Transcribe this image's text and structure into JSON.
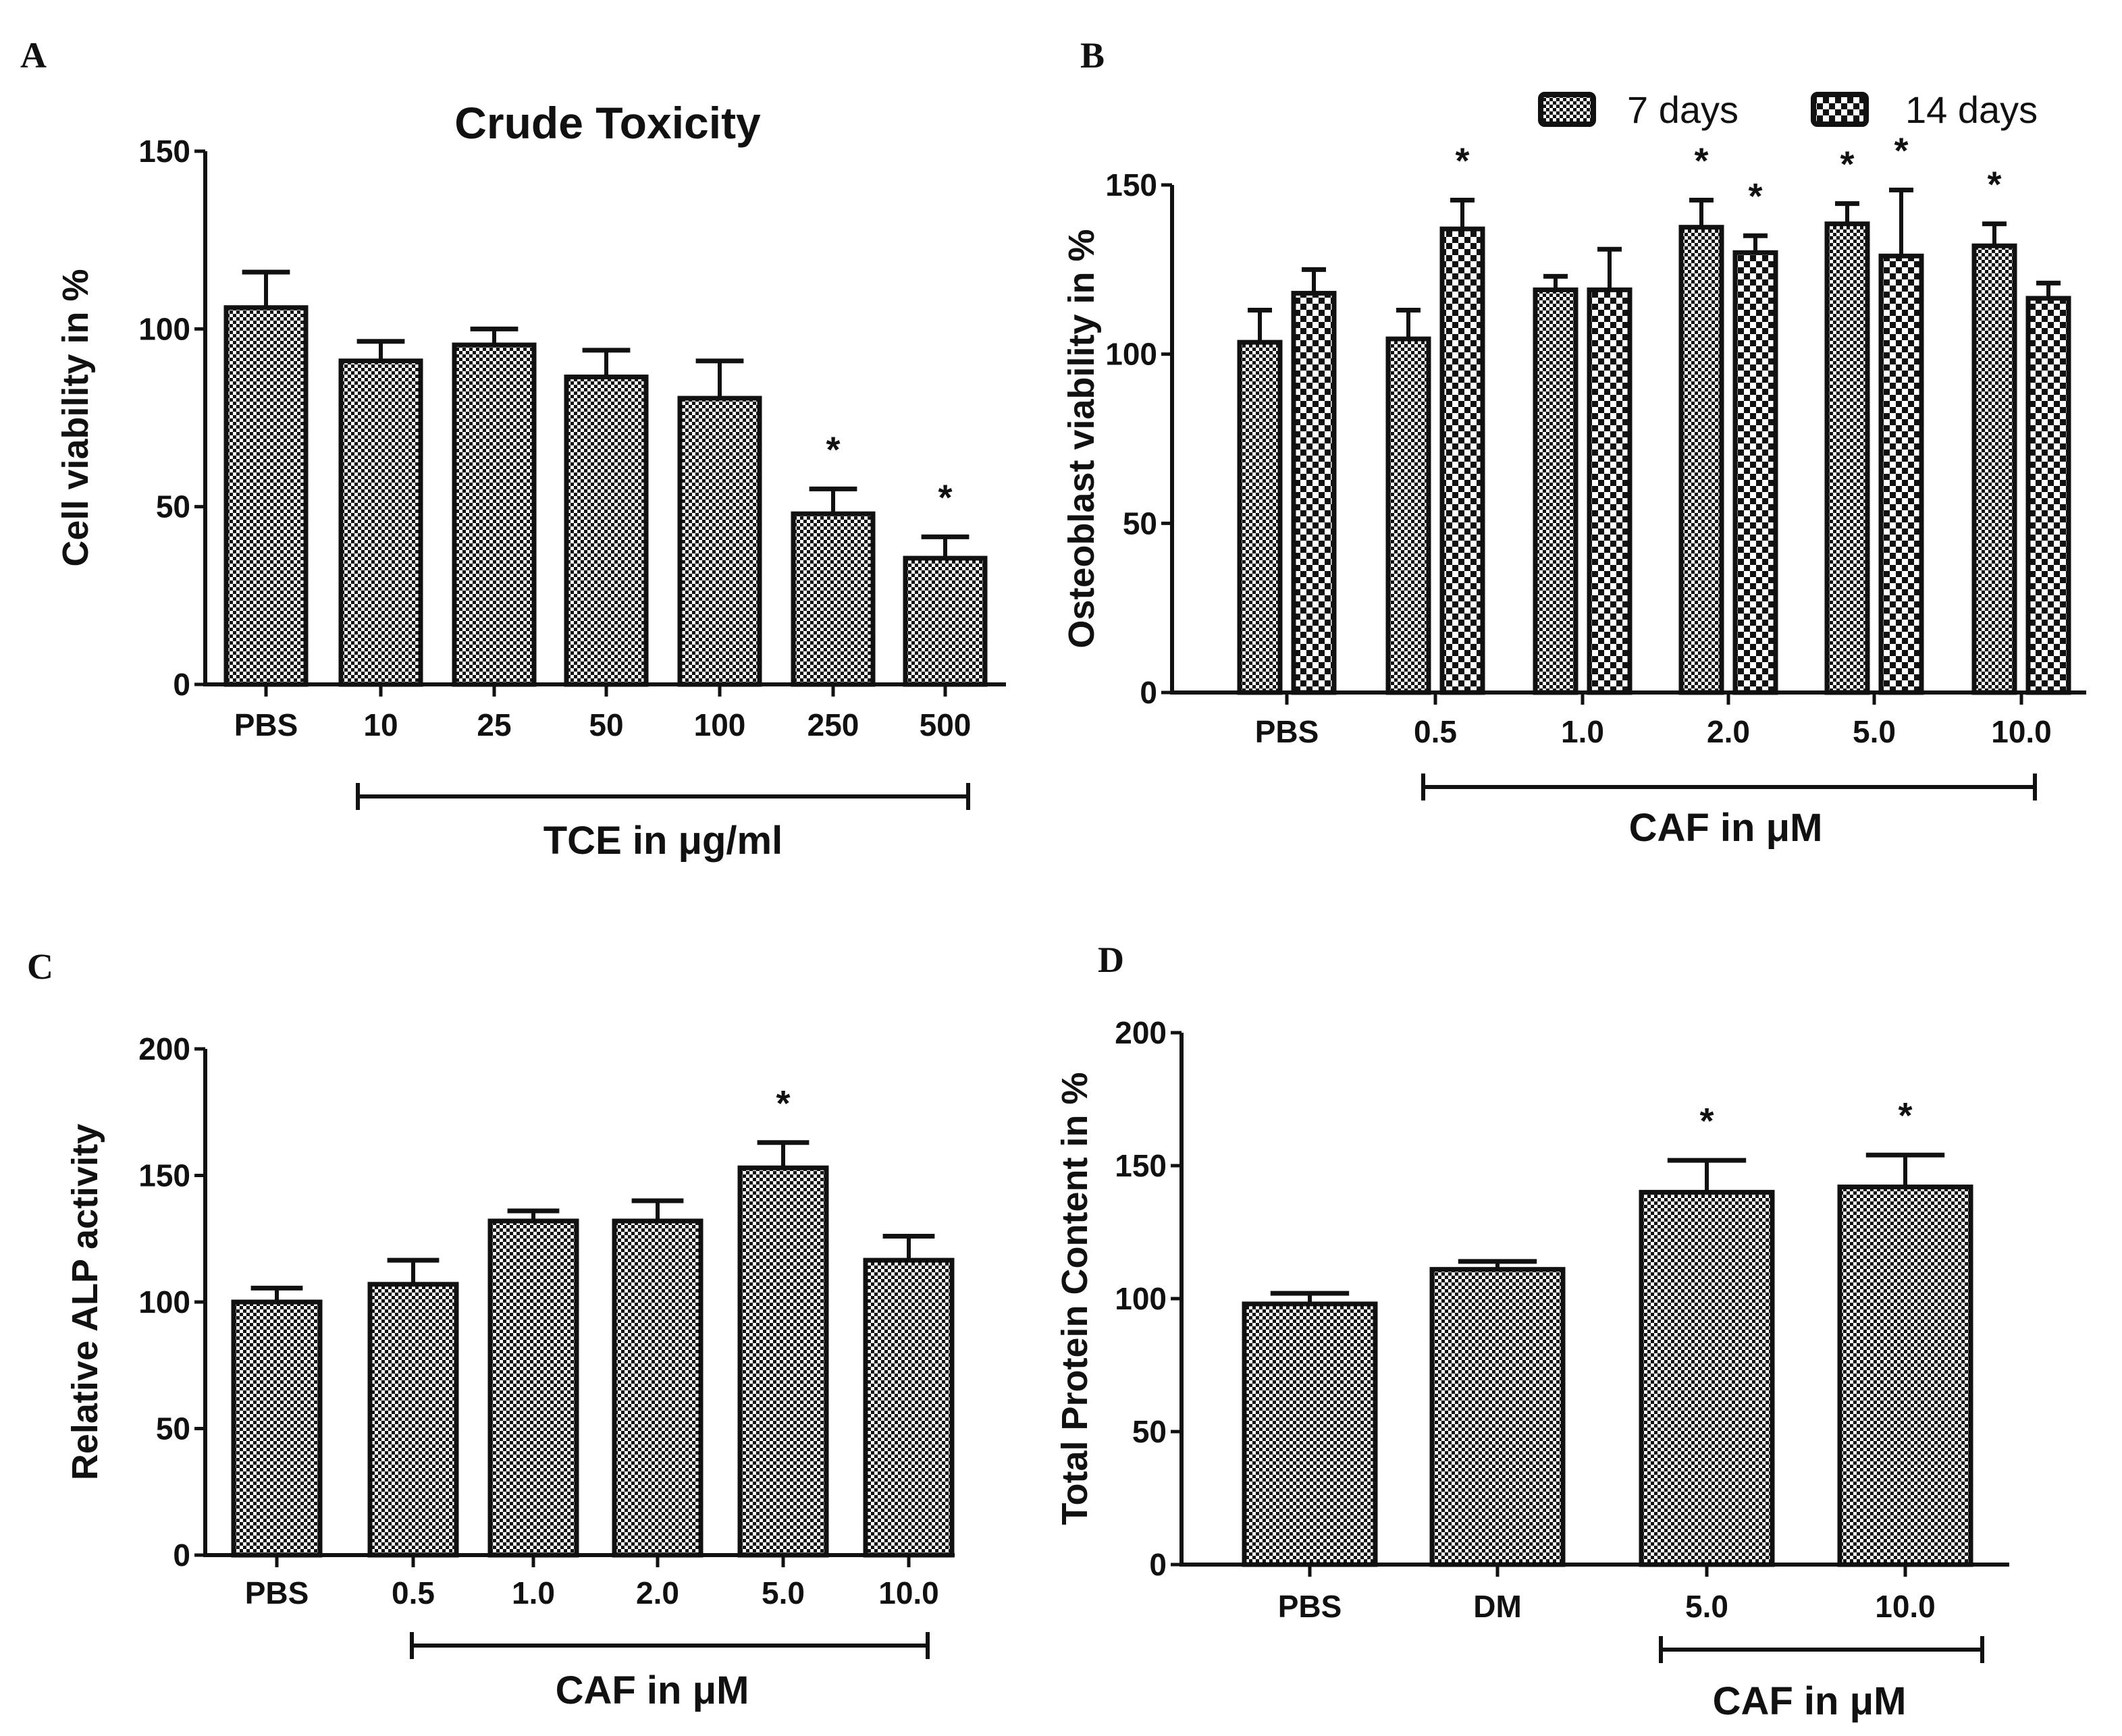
{
  "significance_marker": "*",
  "chart_data": [
    {
      "panel": "A",
      "type": "bar",
      "title": "Crude Toxicity",
      "ylabel": "Cell viability in %",
      "xlabel": "TCE in μg/ml",
      "ylim": [
        0,
        150
      ],
      "yticks": [
        0,
        50,
        100,
        150
      ],
      "categories": [
        "PBS",
        "10",
        "25",
        "50",
        "100",
        "250",
        "500"
      ],
      "values": [
        106,
        91,
        95.5,
        86.5,
        80.5,
        48,
        35.5
      ],
      "errors_upper": [
        116,
        96.5,
        100,
        94,
        91,
        55,
        41.5
      ],
      "significant": [
        false,
        false,
        false,
        false,
        false,
        true,
        true
      ],
      "bracket": [
        "10",
        "500"
      ]
    },
    {
      "panel": "B",
      "type": "bar",
      "title": "",
      "ylabel": "Osteoblast viability in %",
      "xlabel": "CAF in μM",
      "ylim": [
        0,
        150
      ],
      "yticks": [
        0,
        50,
        100,
        150
      ],
      "categories": [
        "PBS",
        "0.5",
        "1.0",
        "2.0",
        "5.0",
        "10.0"
      ],
      "legend_position": "top-right",
      "series": [
        {
          "name": "7 days",
          "values": [
            103.5,
            104.5,
            119,
            137.5,
            138.5,
            132
          ],
          "errors_upper": [
            113,
            113,
            123,
            145.5,
            144.5,
            138.5
          ],
          "significant": [
            false,
            false,
            false,
            true,
            true,
            true
          ]
        },
        {
          "name": "14 days",
          "values": [
            118,
            137,
            119,
            130,
            129,
            116.5
          ],
          "errors_upper": [
            125,
            145.5,
            131,
            135,
            148.5,
            121
          ],
          "significant": [
            false,
            true,
            false,
            true,
            true,
            false
          ]
        }
      ],
      "bracket": [
        "0.5",
        "10.0"
      ]
    },
    {
      "panel": "C",
      "type": "bar",
      "title": "",
      "ylabel": "Relative ALP activity",
      "xlabel": "CAF in μM",
      "ylim": [
        0,
        200
      ],
      "yticks": [
        0,
        50,
        100,
        150,
        200
      ],
      "categories": [
        "PBS",
        "0.5",
        "1.0",
        "2.0",
        "5.0",
        "10.0"
      ],
      "values": [
        100,
        107,
        132,
        132,
        153,
        116.5
      ],
      "errors_upper": [
        105.5,
        116.5,
        136,
        140,
        163,
        126
      ],
      "significant": [
        false,
        false,
        false,
        false,
        true,
        false
      ],
      "bracket": [
        "0.5",
        "10.0"
      ]
    },
    {
      "panel": "D",
      "type": "bar",
      "title": "",
      "ylabel": "Total Protein Content in %",
      "xlabel": "CAF in μM",
      "ylim": [
        0,
        200
      ],
      "yticks": [
        0,
        50,
        100,
        150,
        200
      ],
      "categories": [
        "PBS",
        "DM",
        "5.0",
        "10.0"
      ],
      "values": [
        98,
        111,
        140,
        142
      ],
      "errors_upper": [
        102,
        114,
        152,
        154
      ],
      "significant": [
        false,
        false,
        true,
        true
      ],
      "bracket": [
        "5.0",
        "10.0"
      ]
    }
  ]
}
